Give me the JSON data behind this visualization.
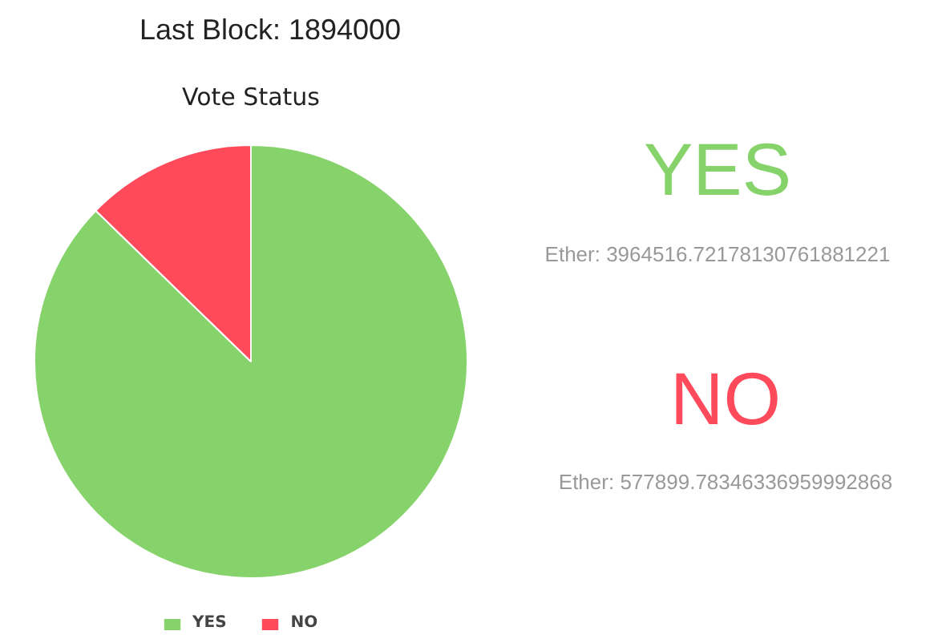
{
  "chart_data": {
    "type": "pie",
    "title": "Last Block: 1894000",
    "subtitle": "Vote Status",
    "categories": [
      "YES",
      "NO"
    ],
    "values": [
      87.28,
      12.72
    ],
    "annotations": [
      "Ether: 3964516.72178130761881221",
      "Ether: 577899.78346336959992868"
    ],
    "colors": [
      "#87d36b",
      "#fe4a5b"
    ],
    "legend": "bottom"
  }
}
